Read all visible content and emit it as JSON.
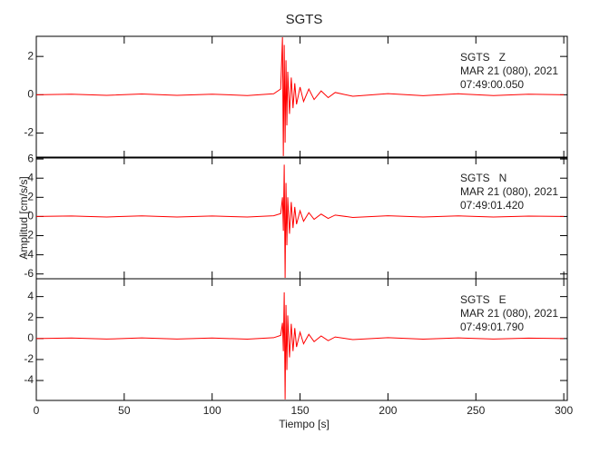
{
  "chart_data": {
    "type": "line",
    "title": "SGTS",
    "xlabel": "Tiempo [s]",
    "ylabel": "Amplitud [cm/s/s]",
    "color": "#ff0000",
    "xlim": [
      0,
      302
    ],
    "xticks": [
      0,
      50,
      100,
      150,
      200,
      250,
      300
    ],
    "panels": [
      {
        "ylim": [
          -3.3,
          3.05
        ],
        "yticks": [
          -2,
          0,
          2
        ],
        "annotations": [
          "SGTS   Z",
          "MAR 21 (080), 2021",
          "07:49:00.050"
        ],
        "x": [
          0,
          20,
          40,
          60,
          80,
          100,
          120,
          135,
          139,
          140,
          140.5,
          141,
          141.5,
          142,
          142.5,
          143,
          144,
          145,
          146,
          147,
          148,
          150,
          152,
          155,
          158,
          162,
          166,
          170,
          180,
          200,
          220,
          240,
          260,
          280,
          300
        ],
        "values": [
          0,
          0.03,
          -0.03,
          0.04,
          -0.03,
          0.03,
          -0.04,
          0.05,
          0.3,
          3,
          -3.2,
          2.6,
          -2.5,
          1.8,
          -1.6,
          1.2,
          -1.0,
          0.9,
          -0.7,
          0.6,
          -0.5,
          0.4,
          -0.35,
          0.3,
          -0.25,
          0.2,
          -0.15,
          0.12,
          -0.08,
          0.06,
          -0.05,
          0.05,
          -0.04,
          0.03,
          0
        ]
      },
      {
        "ylim": [
          -6.5,
          6.2
        ],
        "yticks": [
          -6,
          -4,
          -2,
          0,
          2,
          4,
          6
        ],
        "annotations": [
          "SGTS   N",
          "MAR 21 (080), 2021",
          "07:49:01.420"
        ],
        "x": [
          0,
          20,
          40,
          60,
          80,
          100,
          120,
          135,
          139,
          140,
          140.5,
          141,
          141.5,
          142,
          142.5,
          143,
          144,
          145,
          146,
          147,
          148,
          150,
          152,
          155,
          158,
          162,
          166,
          170,
          180,
          200,
          220,
          240,
          260,
          280,
          300
        ],
        "values": [
          0,
          0.05,
          -0.05,
          0.06,
          -0.05,
          0.05,
          -0.06,
          0.08,
          0.3,
          2,
          -1.5,
          5.4,
          -6.4,
          3.5,
          -3,
          2,
          -1.8,
          1.5,
          -1.2,
          1,
          -0.8,
          0.6,
          -0.5,
          0.4,
          -0.3,
          0.25,
          -0.2,
          0.15,
          -0.1,
          0.08,
          -0.06,
          0.06,
          -0.05,
          0.04,
          0
        ]
      },
      {
        "ylim": [
          -5.9,
          5.7
        ],
        "yticks": [
          -4,
          -2,
          0,
          2,
          4
        ],
        "annotations": [
          "SGTS   E",
          "MAR 21 (080), 2021",
          "07:49:01.790"
        ],
        "x": [
          0,
          20,
          40,
          60,
          80,
          100,
          120,
          135,
          139,
          140,
          140.5,
          141,
          141.5,
          142,
          142.5,
          143,
          144,
          145,
          146,
          147,
          148,
          150,
          152,
          155,
          158,
          162,
          166,
          170,
          180,
          200,
          220,
          240,
          260,
          280,
          300
        ],
        "values": [
          0,
          0.05,
          -0.05,
          0.06,
          -0.05,
          0.05,
          -0.06,
          0.08,
          0.3,
          1.5,
          -1.2,
          4.4,
          -5.8,
          3.2,
          -3,
          2.2,
          -1.8,
          1.4,
          -1.2,
          1,
          -0.8,
          0.6,
          -0.5,
          0.4,
          -0.3,
          0.25,
          -0.2,
          0.15,
          -0.1,
          0.08,
          -0.06,
          0.06,
          -0.05,
          0.04,
          0
        ]
      }
    ]
  }
}
